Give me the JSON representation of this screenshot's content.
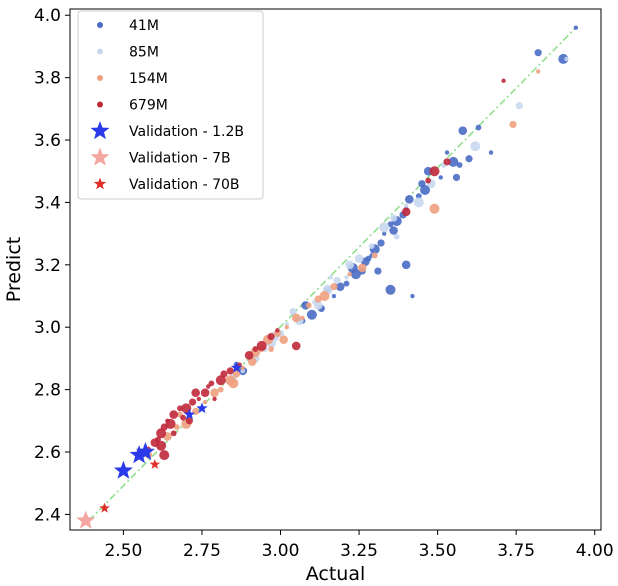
{
  "chart_data": {
    "type": "scatter",
    "xlabel": "Actual",
    "ylabel": "Predict",
    "xlim": [
      2.33,
      4.02
    ],
    "ylim": [
      2.35,
      4.02
    ],
    "xticks": [
      "2.50",
      "2.75",
      "3.00",
      "3.25",
      "3.50",
      "3.75",
      "4.00"
    ],
    "yticks": [
      "2.4",
      "2.6",
      "2.8",
      "3.0",
      "3.2",
      "3.4",
      "3.6",
      "3.8",
      "4.0"
    ],
    "grid": false,
    "legend_position": "top-left",
    "reference_line": {
      "style": "dash-dot",
      "color": "#90e090",
      "from": [
        2.39,
        2.38
      ],
      "to": [
        3.94,
        3.96
      ]
    },
    "series": [
      {
        "name": "41M",
        "marker": "circle",
        "color": "#4a6bc4",
        "points": [
          [
            3.94,
            3.96
          ],
          [
            3.82,
            3.88
          ],
          [
            3.9,
            3.86
          ],
          [
            3.63,
            3.64
          ],
          [
            3.58,
            3.63
          ],
          [
            3.53,
            3.56
          ],
          [
            3.6,
            3.54
          ],
          [
            3.55,
            3.53
          ],
          [
            3.57,
            3.52
          ],
          [
            3.47,
            3.5
          ],
          [
            3.51,
            3.48
          ],
          [
            3.45,
            3.46
          ],
          [
            3.46,
            3.44
          ],
          [
            3.44,
            3.42
          ],
          [
            3.41,
            3.41
          ],
          [
            3.4,
            3.38
          ],
          [
            3.39,
            3.36
          ],
          [
            3.37,
            3.34
          ],
          [
            3.35,
            3.33
          ],
          [
            3.36,
            3.31
          ],
          [
            3.33,
            3.3
          ],
          [
            3.32,
            3.27
          ],
          [
            3.3,
            3.25
          ],
          [
            3.28,
            3.22
          ],
          [
            3.27,
            3.21
          ],
          [
            3.29,
            3.23
          ],
          [
            3.26,
            3.18
          ],
          [
            3.24,
            3.17
          ],
          [
            3.21,
            3.14
          ],
          [
            3.19,
            3.13
          ],
          [
            3.17,
            3.1
          ],
          [
            3.13,
            3.06
          ],
          [
            3.1,
            3.04
          ],
          [
            3.07,
            3.02
          ],
          [
            3.4,
            3.2
          ],
          [
            3.42,
            3.1
          ],
          [
            3.31,
            3.18
          ],
          [
            3.35,
            3.12
          ],
          [
            2.86,
            2.88
          ],
          [
            2.88,
            2.86
          ],
          [
            3.67,
            3.56
          ],
          [
            3.56,
            3.48
          ],
          [
            3.23,
            3.19
          ],
          [
            3.15,
            3.12
          ],
          [
            3.08,
            3.07
          ]
        ]
      },
      {
        "name": "85M",
        "marker": "circle",
        "color": "#c8d8ee",
        "points": [
          [
            3.91,
            3.86
          ],
          [
            3.76,
            3.71
          ],
          [
            3.62,
            3.58
          ],
          [
            3.52,
            3.52
          ],
          [
            3.48,
            3.46
          ],
          [
            3.4,
            3.39
          ],
          [
            3.36,
            3.35
          ],
          [
            3.33,
            3.32
          ],
          [
            3.29,
            3.26
          ],
          [
            3.25,
            3.22
          ],
          [
            3.21,
            3.16
          ],
          [
            3.18,
            3.15
          ],
          [
            3.15,
            3.12
          ],
          [
            3.11,
            3.08
          ],
          [
            3.06,
            3.02
          ],
          [
            3.02,
            3.01
          ],
          [
            3.0,
            2.98
          ],
          [
            2.97,
            2.95
          ],
          [
            2.95,
            2.93
          ],
          [
            2.92,
            2.9
          ],
          [
            2.88,
            2.86
          ],
          [
            2.85,
            2.84
          ],
          [
            3.44,
            3.4
          ],
          [
            3.3,
            3.23
          ],
          [
            3.22,
            3.2
          ],
          [
            3.16,
            3.16
          ],
          [
            3.04,
            3.05
          ],
          [
            2.98,
            2.97
          ],
          [
            3.37,
            3.29
          ],
          [
            3.12,
            3.07
          ]
        ]
      },
      {
        "name": "154M",
        "marker": "circle",
        "color": "#f0a080",
        "points": [
          [
            3.82,
            3.82
          ],
          [
            3.74,
            3.65
          ],
          [
            3.49,
            3.38
          ],
          [
            3.3,
            3.23
          ],
          [
            3.26,
            3.19
          ],
          [
            3.22,
            3.17
          ],
          [
            3.17,
            3.13
          ],
          [
            3.14,
            3.1
          ],
          [
            3.09,
            3.07
          ],
          [
            3.05,
            3.03
          ],
          [
            3.02,
            3.0
          ],
          [
            2.99,
            2.98
          ],
          [
            2.96,
            2.96
          ],
          [
            2.94,
            2.93
          ],
          [
            2.91,
            2.89
          ],
          [
            2.88,
            2.87
          ],
          [
            2.86,
            2.85
          ],
          [
            2.84,
            2.83
          ],
          [
            2.81,
            2.8
          ],
          [
            2.79,
            2.79
          ],
          [
            2.76,
            2.76
          ],
          [
            2.73,
            2.73
          ],
          [
            2.7,
            2.69
          ],
          [
            2.67,
            2.68
          ],
          [
            2.64,
            2.65
          ],
          [
            2.61,
            2.62
          ],
          [
            2.58,
            2.59
          ],
          [
            2.92,
            2.92
          ],
          [
            2.97,
            2.93
          ],
          [
            3.01,
            2.96
          ],
          [
            3.07,
            3.03
          ],
          [
            3.12,
            3.09
          ],
          [
            2.85,
            2.82
          ],
          [
            2.68,
            2.72
          ]
        ]
      },
      {
        "name": "679M",
        "marker": "circle",
        "color": "#c0283a",
        "points": [
          [
            3.71,
            3.79
          ],
          [
            3.53,
            3.53
          ],
          [
            3.49,
            3.5
          ],
          [
            3.47,
            3.47
          ],
          [
            3.4,
            3.37
          ],
          [
            2.99,
            2.99
          ],
          [
            2.97,
            2.97
          ],
          [
            2.94,
            2.94
          ],
          [
            2.92,
            2.93
          ],
          [
            2.9,
            2.91
          ],
          [
            2.87,
            2.88
          ],
          [
            2.84,
            2.86
          ],
          [
            2.81,
            2.83
          ],
          [
            2.78,
            2.82
          ],
          [
            2.76,
            2.79
          ],
          [
            2.74,
            2.77
          ],
          [
            2.72,
            2.76
          ],
          [
            2.7,
            2.74
          ],
          [
            2.68,
            2.74
          ],
          [
            2.66,
            2.72
          ],
          [
            2.64,
            2.7
          ],
          [
            2.63,
            2.68
          ],
          [
            2.62,
            2.66
          ],
          [
            2.61,
            2.64
          ],
          [
            2.6,
            2.63
          ],
          [
            2.58,
            2.61
          ],
          [
            2.57,
            2.6
          ],
          [
            2.65,
            2.69
          ],
          [
            2.69,
            2.71
          ],
          [
            2.73,
            2.79
          ],
          [
            2.77,
            2.81
          ],
          [
            2.82,
            2.85
          ],
          [
            2.62,
            2.62
          ],
          [
            2.66,
            2.66
          ],
          [
            3.05,
            2.94
          ],
          [
            2.79,
            2.77
          ],
          [
            2.71,
            2.7
          ],
          [
            2.63,
            2.59
          ]
        ]
      },
      {
        "name": "Validation - 1.2B",
        "marker": "star",
        "color": "#2a3ae8",
        "points": [
          [
            2.5,
            2.54
          ],
          [
            2.55,
            2.59
          ],
          [
            2.57,
            2.6
          ],
          [
            2.71,
            2.72
          ],
          [
            2.75,
            2.74
          ],
          [
            2.86,
            2.87
          ]
        ]
      },
      {
        "name": "Validation - 7B",
        "marker": "star",
        "color": "#f4a6a0",
        "points": [
          [
            2.38,
            2.38
          ]
        ]
      },
      {
        "name": "Validation - 70B",
        "marker": "star",
        "color": "#e0302a",
        "points": [
          [
            2.44,
            2.42
          ],
          [
            2.6,
            2.56
          ]
        ]
      }
    ]
  }
}
